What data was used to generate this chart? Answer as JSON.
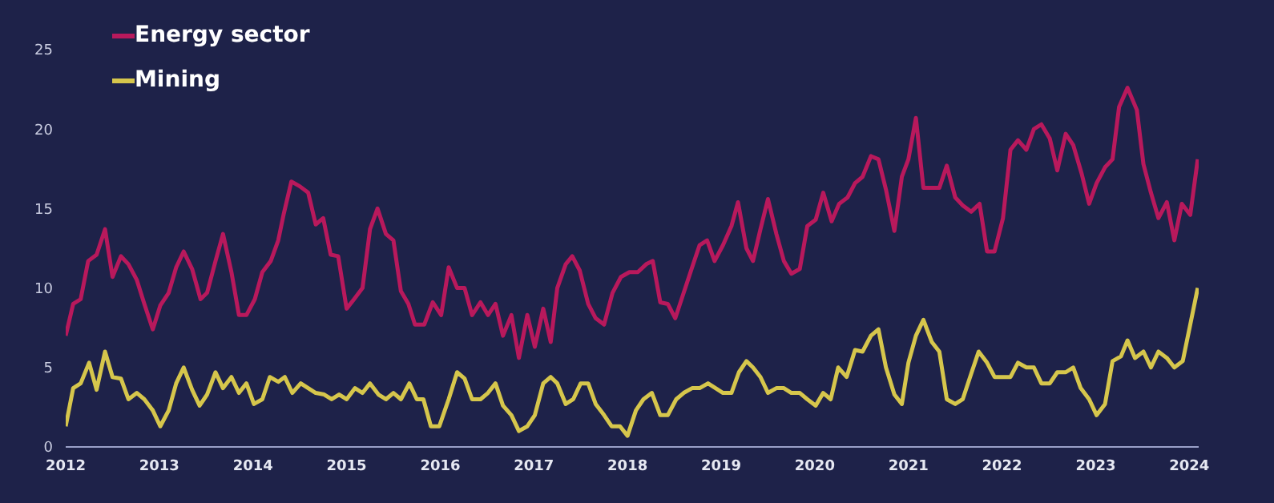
{
  "chart_data": {
    "type": "line",
    "legend": "top left",
    "xlim": [
      2012,
      2024.1
    ],
    "xticks": [
      2012,
      2013,
      2014,
      2015,
      2016,
      2017,
      2018,
      2019,
      2020,
      2021,
      2022,
      2023,
      2024
    ],
    "ylim": [
      0,
      25
    ],
    "yticks": [
      0,
      5,
      10,
      15,
      20,
      25
    ],
    "series": [
      {
        "name": "Energy sector",
        "color": "#b8195c",
        "x": [
          2012.0,
          2012.08,
          2012.16,
          2012.24,
          2012.33,
          2012.42,
          2012.5,
          2012.59,
          2012.67,
          2012.76,
          2012.84,
          2012.93,
          2013.01,
          2013.1,
          2013.18,
          2013.26,
          2013.35,
          2013.44,
          2013.51,
          2013.6,
          2013.68,
          2013.77,
          2013.85,
          2013.93,
          2014.02,
          2014.1,
          2014.19,
          2014.27,
          2014.33,
          2014.41,
          2014.5,
          2014.59,
          2014.67,
          2014.75,
          2014.83,
          2014.91,
          2015.0,
          2015.08,
          2015.17,
          2015.25,
          2015.33,
          2015.42,
          2015.5,
          2015.58,
          2015.66,
          2015.73,
          2015.83,
          2015.92,
          2016.01,
          2016.09,
          2016.18,
          2016.26,
          2016.34,
          2016.43,
          2016.51,
          2016.59,
          2016.67,
          2016.76,
          2016.84,
          2016.93,
          2017.01,
          2017.1,
          2017.18,
          2017.25,
          2017.34,
          2017.41,
          2017.49,
          2017.58,
          2017.66,
          2017.75,
          2017.84,
          2017.93,
          2018.02,
          2018.11,
          2018.2,
          2018.27,
          2018.35,
          2018.43,
          2018.51,
          2018.6,
          2018.69,
          2018.77,
          2018.85,
          2018.93,
          2019.02,
          2019.11,
          2019.18,
          2019.27,
          2019.34,
          2019.42,
          2019.5,
          2019.59,
          2019.67,
          2019.75,
          2019.84,
          2019.92,
          2020.01,
          2020.09,
          2020.18,
          2020.26,
          2020.35,
          2020.43,
          2020.51,
          2020.6,
          2020.68,
          2020.76,
          2020.85,
          2020.93,
          2021.0,
          2021.08,
          2021.16,
          2021.25,
          2021.33,
          2021.41,
          2021.5,
          2021.58,
          2021.67,
          2021.76,
          2021.84,
          2021.92,
          2022.01,
          2022.09,
          2022.17,
          2022.26,
          2022.34,
          2022.42,
          2022.51,
          2022.59,
          2022.68,
          2022.76,
          2022.85,
          2022.93,
          2023.01,
          2023.1,
          2023.18,
          2023.25,
          2023.34,
          2023.44,
          2023.51,
          2023.59,
          2023.67,
          2023.76,
          2023.84,
          2023.92,
          2024.01,
          2024.09
        ],
        "values": [
          7.0,
          9.0,
          9.3,
          11.7,
          12.1,
          13.7,
          10.7,
          12.0,
          11.5,
          10.5,
          9.0,
          7.4,
          8.9,
          9.7,
          11.3,
          12.3,
          11.2,
          9.3,
          9.7,
          11.7,
          13.4,
          11.0,
          8.3,
          8.3,
          9.3,
          11.0,
          11.7,
          13.0,
          14.7,
          16.7,
          16.4,
          16.0,
          14.0,
          14.4,
          12.1,
          12.0,
          8.7,
          9.3,
          10.0,
          13.7,
          15.0,
          13.4,
          13.0,
          9.8,
          9.0,
          7.7,
          7.7,
          9.1,
          8.3,
          11.3,
          10.0,
          10.0,
          8.3,
          9.1,
          8.3,
          9.0,
          7.0,
          8.3,
          5.6,
          8.3,
          6.3,
          8.7,
          6.6,
          10.0,
          11.5,
          12.0,
          11.1,
          9.0,
          8.1,
          7.7,
          9.7,
          10.7,
          11.0,
          11.0,
          11.5,
          11.7,
          9.1,
          9.0,
          8.1,
          9.7,
          11.3,
          12.7,
          13.0,
          11.7,
          12.7,
          13.9,
          15.4,
          12.5,
          11.7,
          13.7,
          15.6,
          13.4,
          11.7,
          10.9,
          11.2,
          13.9,
          14.3,
          16.0,
          14.2,
          15.3,
          15.7,
          16.6,
          17.0,
          18.3,
          18.1,
          16.2,
          13.6,
          17.0,
          18.1,
          20.7,
          16.3,
          16.3,
          16.3,
          17.7,
          15.7,
          15.2,
          14.8,
          15.3,
          12.3,
          12.3,
          14.4,
          18.7,
          19.3,
          18.7,
          20.0,
          20.3,
          19.4,
          17.4,
          19.7,
          19.0,
          17.2,
          15.3,
          16.6,
          17.6,
          18.1,
          21.4,
          22.6,
          21.2,
          17.8,
          16.0,
          14.4,
          15.4,
          13.0,
          15.3,
          14.6,
          18.1
        ]
      },
      {
        "name": "Mining",
        "color": "#d6c64c",
        "x": [
          2012.0,
          2012.08,
          2012.16,
          2012.25,
          2012.33,
          2012.42,
          2012.5,
          2012.59,
          2012.67,
          2012.76,
          2012.84,
          2012.93,
          2013.01,
          2013.1,
          2013.18,
          2013.26,
          2013.35,
          2013.43,
          2013.51,
          2013.6,
          2013.68,
          2013.77,
          2013.85,
          2013.93,
          2014.01,
          2014.1,
          2014.18,
          2014.27,
          2014.34,
          2014.42,
          2014.51,
          2014.59,
          2014.67,
          2014.76,
          2014.84,
          2014.92,
          2015.0,
          2015.09,
          2015.17,
          2015.25,
          2015.34,
          2015.42,
          2015.5,
          2015.58,
          2015.67,
          2015.75,
          2015.82,
          2015.9,
          2015.99,
          2016.09,
          2016.18,
          2016.26,
          2016.34,
          2016.43,
          2016.51,
          2016.59,
          2016.67,
          2016.76,
          2016.84,
          2016.93,
          2017.01,
          2017.1,
          2017.18,
          2017.25,
          2017.34,
          2017.42,
          2017.5,
          2017.58,
          2017.66,
          2017.75,
          2017.83,
          2017.92,
          2018.0,
          2018.09,
          2018.17,
          2018.26,
          2018.35,
          2018.43,
          2018.52,
          2018.6,
          2018.69,
          2018.77,
          2018.86,
          2018.94,
          2019.02,
          2019.11,
          2019.19,
          2019.27,
          2019.34,
          2019.42,
          2019.5,
          2019.59,
          2019.67,
          2019.75,
          2019.84,
          2019.92,
          2020.01,
          2020.09,
          2020.17,
          2020.25,
          2020.34,
          2020.43,
          2020.51,
          2020.6,
          2020.68,
          2020.76,
          2020.85,
          2020.93,
          2021.0,
          2021.08,
          2021.16,
          2021.25,
          2021.33,
          2021.41,
          2021.5,
          2021.58,
          2021.67,
          2021.75,
          2021.84,
          2021.92,
          2022.01,
          2022.09,
          2022.17,
          2022.26,
          2022.34,
          2022.42,
          2022.51,
          2022.59,
          2022.68,
          2022.76,
          2022.84,
          2022.93,
          2023.01,
          2023.1,
          2023.18,
          2023.27,
          2023.34,
          2023.42,
          2023.51,
          2023.59,
          2023.67,
          2023.76,
          2023.84,
          2023.93,
          2024.01,
          2024.09
        ],
        "values": [
          1.3,
          3.7,
          4.0,
          5.3,
          3.6,
          6.0,
          4.4,
          4.3,
          3.0,
          3.4,
          3.0,
          2.3,
          1.3,
          2.3,
          4.0,
          5.0,
          3.6,
          2.6,
          3.3,
          4.7,
          3.7,
          4.4,
          3.4,
          4.0,
          2.7,
          3.0,
          4.4,
          4.1,
          4.4,
          3.4,
          4.0,
          3.7,
          3.4,
          3.3,
          3.0,
          3.3,
          3.0,
          3.7,
          3.4,
          4.0,
          3.3,
          3.0,
          3.4,
          3.0,
          4.0,
          3.0,
          3.0,
          1.3,
          1.3,
          3.0,
          4.7,
          4.3,
          3.0,
          3.0,
          3.4,
          4.0,
          2.6,
          2.0,
          1.0,
          1.3,
          2.0,
          4.0,
          4.4,
          4.0,
          2.7,
          3.0,
          4.0,
          4.0,
          2.7,
          2.0,
          1.3,
          1.3,
          0.7,
          2.3,
          3.0,
          3.4,
          2.0,
          2.0,
          3.0,
          3.4,
          3.7,
          3.7,
          4.0,
          3.7,
          3.4,
          3.4,
          4.7,
          5.4,
          5.0,
          4.4,
          3.4,
          3.7,
          3.7,
          3.4,
          3.4,
          3.0,
          2.6,
          3.4,
          3.0,
          5.0,
          4.4,
          6.1,
          6.0,
          7.0,
          7.4,
          5.0,
          3.3,
          2.7,
          5.3,
          7.0,
          8.0,
          6.6,
          6.0,
          3.0,
          2.7,
          3.0,
          4.6,
          6.0,
          5.3,
          4.4,
          4.4,
          4.4,
          5.3,
          5.0,
          5.0,
          4.0,
          4.0,
          4.7,
          4.7,
          5.0,
          3.7,
          3.0,
          2.0,
          2.7,
          5.4,
          5.7,
          6.7,
          5.6,
          6.0,
          5.0,
          6.0,
          5.6,
          5.0,
          5.4,
          7.7,
          10.0
        ]
      }
    ]
  }
}
